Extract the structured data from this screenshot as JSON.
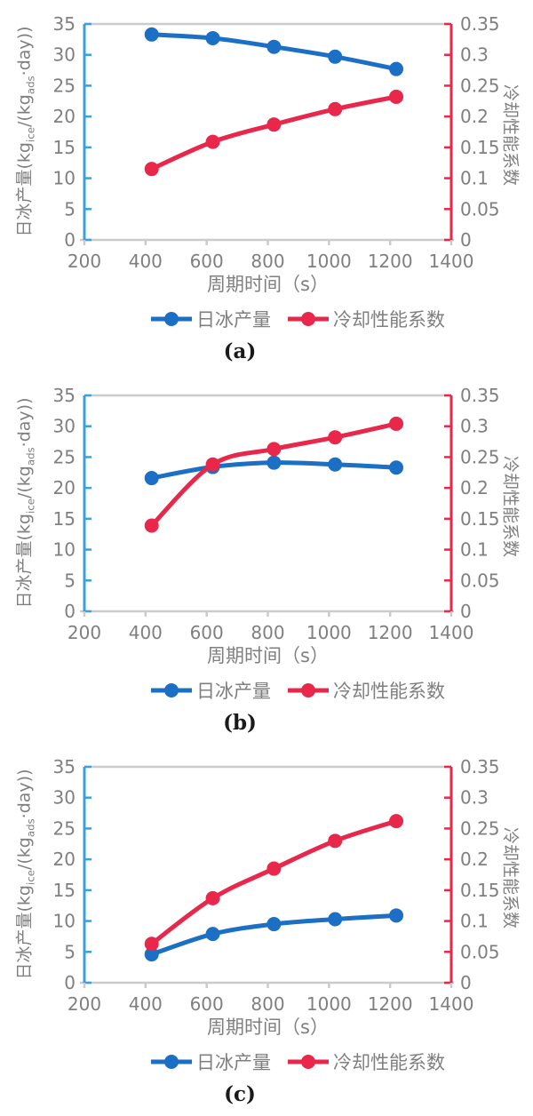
{
  "colors": {
    "ice_series": "#1B6FC5",
    "cop_series": "#E8274B",
    "left_axis_line": "#3BA0DC",
    "right_axis_line": "#E8274B",
    "plot_border": "#CDCBC9",
    "axis_tick_text": "#7F7F7F",
    "caption_text": "#1A1A1A"
  },
  "axes": {
    "x": {
      "label": "周期时间（s）",
      "min": 200,
      "max": 1400,
      "ticks": [
        200,
        400,
        600,
        800,
        1000,
        1200,
        1400
      ]
    },
    "y_left": {
      "label_plain": "日冰产量(kgice/(kgads·day))",
      "label_parts": [
        {
          "text": "日冰产量(kg"
        },
        {
          "text": "ice",
          "sub": true
        },
        {
          "text": "/(kg"
        },
        {
          "text": "ads",
          "sub": true
        },
        {
          "text": "·day))"
        }
      ],
      "min": 0,
      "max": 35,
      "ticks": [
        0,
        5,
        10,
        15,
        20,
        25,
        30,
        35
      ]
    },
    "y_right": {
      "label": "冷却性能系数",
      "min": 0,
      "max": 0.35,
      "tick_labels": [
        "0",
        "0.05",
        "0.1",
        "0.15",
        "0.2",
        "0.25",
        "0.3",
        "0.35"
      ]
    }
  },
  "legend": {
    "items": [
      {
        "label": "日冰产量",
        "color": "#1B6FC5"
      },
      {
        "label": "冷却性能系数",
        "color": "#E8274B"
      }
    ]
  },
  "chart_data": [
    {
      "type": "line",
      "caption": "(a)",
      "x": [
        420,
        620,
        820,
        1020,
        1220
      ],
      "xlabel": "周期时间（s）",
      "ylabel_left": "日冰产量(kgice/(kgads·day))",
      "ylabel_right": "冷却性能系数",
      "xlim": [
        200,
        1400
      ],
      "ylim_left": [
        0,
        35
      ],
      "ylim_right": [
        0,
        0.35
      ],
      "series": [
        {
          "name": "日冰产量",
          "axis": "left",
          "color": "#1B6FC5",
          "values": [
            33.3,
            32.7,
            31.3,
            29.7,
            27.7
          ]
        },
        {
          "name": "冷却性能系数",
          "axis": "right",
          "color": "#E8274B",
          "values": [
            0.115,
            0.159,
            0.187,
            0.212,
            0.232
          ]
        }
      ]
    },
    {
      "type": "line",
      "caption": "(b)",
      "x": [
        420,
        620,
        820,
        1020,
        1220
      ],
      "xlabel": "周期时间（s）",
      "ylabel_left": "日冰产量(kgice/(kgads·day))",
      "ylabel_right": "冷却性能系数",
      "xlim": [
        200,
        1400
      ],
      "ylim_left": [
        0,
        35
      ],
      "ylim_right": [
        0,
        0.35
      ],
      "series": [
        {
          "name": "日冰产量",
          "axis": "left",
          "color": "#1B6FC5",
          "values": [
            21.6,
            23.4,
            24.1,
            23.8,
            23.3
          ]
        },
        {
          "name": "冷却性能系数",
          "axis": "right",
          "color": "#E8274B",
          "values": [
            0.139,
            0.238,
            0.263,
            0.282,
            0.304
          ]
        }
      ]
    },
    {
      "type": "line",
      "caption": "(c)",
      "x": [
        420,
        620,
        820,
        1020,
        1220
      ],
      "xlabel": "周期时间（s）",
      "ylabel_left": "日冰产量(kgice/(kgads·day))",
      "ylabel_right": "冷却性能系数",
      "xlim": [
        200,
        1400
      ],
      "ylim_left": [
        0,
        35
      ],
      "ylim_right": [
        0,
        0.35
      ],
      "series": [
        {
          "name": "日冰产量",
          "axis": "left",
          "color": "#1B6FC5",
          "values": [
            4.6,
            7.9,
            9.5,
            10.3,
            10.9
          ]
        },
        {
          "name": "冷却性能系数",
          "axis": "right",
          "color": "#E8274B",
          "values": [
            0.063,
            0.137,
            0.185,
            0.23,
            0.262
          ]
        }
      ]
    }
  ]
}
